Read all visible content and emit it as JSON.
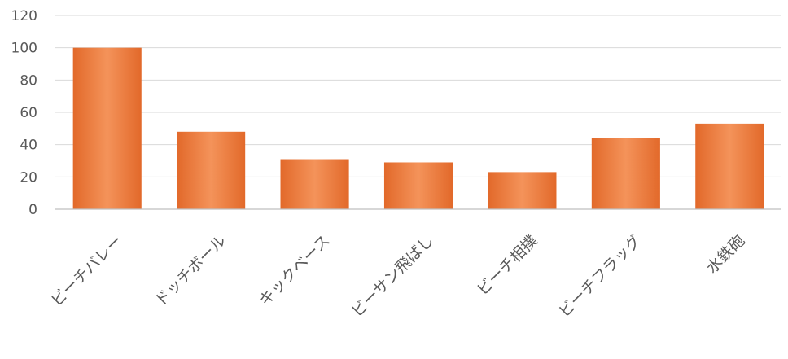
{
  "chart_data": {
    "type": "bar",
    "title": "",
    "xlabel": "",
    "ylabel": "",
    "ylim": [
      0,
      120
    ],
    "yticks": [
      0,
      20,
      40,
      60,
      80,
      100,
      120
    ],
    "grid": true,
    "legend": "none",
    "categories": [
      "ビーチバレー",
      "ドッチボール",
      "キックベース",
      "ビーサン飛ばし",
      "ビーチ相撲",
      "ビーチフラッグ",
      "水鉄砲"
    ],
    "values": [
      100,
      48,
      31,
      29,
      23,
      44,
      53
    ],
    "bar_color": "#ED7D31",
    "bar_gradient_light": "#F4935A",
    "bar_gradient_dark": "#E2692A"
  }
}
